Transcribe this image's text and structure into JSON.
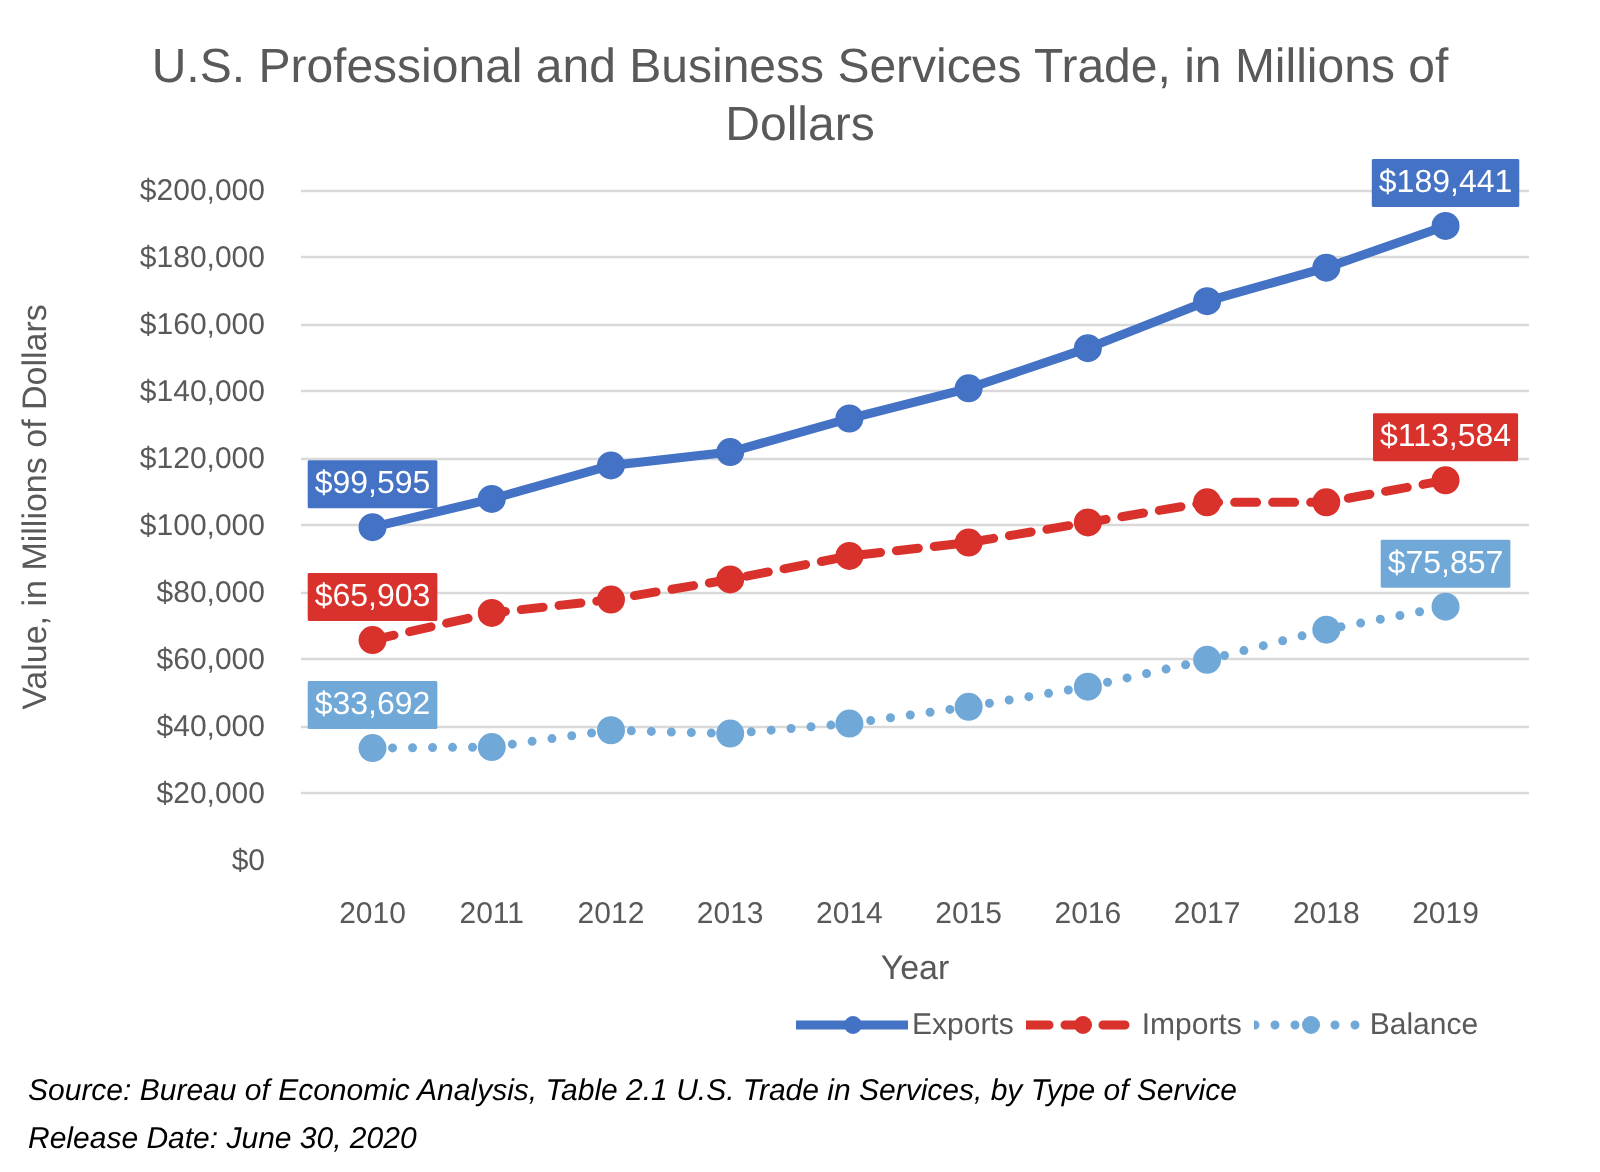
{
  "chart_data": {
    "type": "line",
    "title": "U.S. Professional and Business Services Trade, in Millions of Dollars",
    "xlabel": "Year",
    "ylabel": "Value, in Millions of Dollars",
    "annotations": [
      "Source: Bureau of Economic Analysis, Table 2.1 U.S. Trade in Services, by Type of Service",
      "Release Date: June 30, 2020"
    ],
    "categories": [
      "2010",
      "2011",
      "2012",
      "2013",
      "2014",
      "2015",
      "2016",
      "2017",
      "2018",
      "2019"
    ],
    "series": [
      {
        "name": "Exports",
        "color": "#4472c4",
        "line_style": "solid",
        "values": [
          99595,
          108000,
          118000,
          122000,
          132000,
          141000,
          153000,
          167000,
          177000,
          189441
        ],
        "value_labels": [
          "$99,595",
          null,
          null,
          null,
          null,
          null,
          null,
          null,
          null,
          "$189,441"
        ]
      },
      {
        "name": "Imports",
        "color": "#d9312b",
        "line_style": "dashed",
        "values": [
          65903,
          74000,
          78000,
          84000,
          91000,
          95000,
          101000,
          107000,
          107000,
          113584
        ],
        "value_labels": [
          "$65,903",
          null,
          null,
          null,
          null,
          null,
          null,
          null,
          null,
          "$113,584"
        ]
      },
      {
        "name": "Balance",
        "color": "#70a8d8",
        "line_style": "dotted",
        "values": [
          33692,
          34000,
          39000,
          38000,
          41000,
          46000,
          52000,
          60000,
          69000,
          75857
        ],
        "value_labels": [
          "$33,692",
          null,
          null,
          null,
          null,
          null,
          null,
          null,
          null,
          "$75,857"
        ]
      }
    ],
    "ylim": [
      0,
      200000
    ],
    "yticks": [
      {
        "value": 0,
        "label": "$0"
      },
      {
        "value": 20000,
        "label": "$20,000"
      },
      {
        "value": 40000,
        "label": "$40,000"
      },
      {
        "value": 60000,
        "label": "$60,000"
      },
      {
        "value": 80000,
        "label": "$80,000"
      },
      {
        "value": 100000,
        "label": "$100,000"
      },
      {
        "value": 120000,
        "label": "$120,000"
      },
      {
        "value": 140000,
        "label": "$140,000"
      },
      {
        "value": 160000,
        "label": "$160,000"
      },
      {
        "value": 180000,
        "label": "$180,000"
      },
      {
        "value": 200000,
        "label": "$200,000"
      }
    ],
    "grid": "y",
    "legend": "bottom",
    "marker": "circle"
  }
}
